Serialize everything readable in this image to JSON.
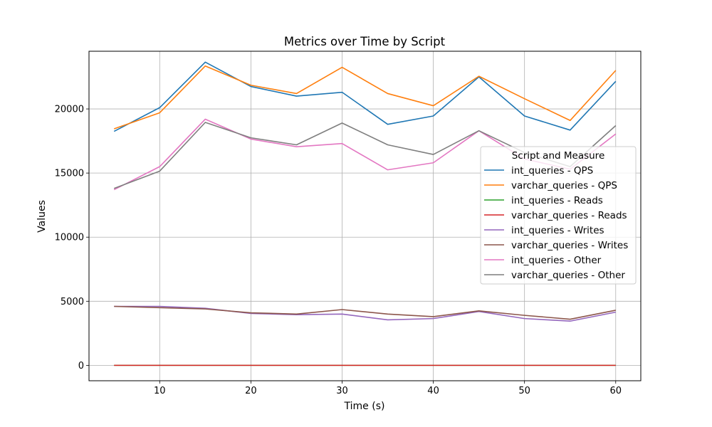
{
  "chart_data": {
    "type": "line",
    "title": "Metrics over Time by Script",
    "xlabel": "Time (s)",
    "ylabel": "Values",
    "x": [
      5,
      10,
      15,
      20,
      25,
      30,
      35,
      40,
      45,
      50,
      55,
      60
    ],
    "xlim": [
      2.25,
      62.75
    ],
    "ylim": [
      -1200,
      24500
    ],
    "xticks": [
      10,
      20,
      30,
      40,
      50,
      60
    ],
    "yticks": [
      0,
      5000,
      10000,
      15000,
      20000
    ],
    "grid": true,
    "legend": {
      "title": "Script and Measure",
      "placement": "right"
    },
    "series": [
      {
        "name": "int_queries - QPS",
        "color": "#1f77b4",
        "values": [
          18250,
          20100,
          23650,
          21750,
          21000,
          21300,
          18800,
          19450,
          22500,
          19450,
          18350,
          22150
        ]
      },
      {
        "name": "varchar_queries - QPS",
        "color": "#ff7f0e",
        "values": [
          18450,
          19700,
          23350,
          21850,
          21200,
          23250,
          21200,
          20250,
          22550,
          20800,
          19100,
          23000
        ]
      },
      {
        "name": "int_queries - Reads",
        "color": "#2ca02c",
        "values": [
          0,
          0,
          0,
          0,
          0,
          0,
          0,
          0,
          0,
          0,
          0,
          0
        ]
      },
      {
        "name": "varchar_queries - Reads",
        "color": "#d62728",
        "values": [
          0,
          0,
          0,
          0,
          0,
          0,
          0,
          0,
          0,
          0,
          0,
          0
        ]
      },
      {
        "name": "int_queries - Writes",
        "color": "#9467bd",
        "values": [
          4600,
          4600,
          4450,
          4050,
          3950,
          4000,
          3550,
          3650,
          4200,
          3650,
          3450,
          4150
        ]
      },
      {
        "name": "varchar_queries - Writes",
        "color": "#8c564b",
        "values": [
          4600,
          4500,
          4400,
          4100,
          4000,
          4350,
          4000,
          3800,
          4250,
          3900,
          3600,
          4300
        ]
      },
      {
        "name": "int_queries - Other",
        "color": "#e377c2",
        "values": [
          13700,
          15500,
          19200,
          17650,
          17050,
          17300,
          15250,
          15800,
          18300,
          16100,
          15300,
          18050
        ]
      },
      {
        "name": "varchar_queries - Other",
        "color": "#7f7f7f",
        "values": [
          13800,
          15150,
          18950,
          17750,
          17200,
          18900,
          17200,
          16450,
          18300,
          16600,
          15500,
          18700
        ]
      }
    ]
  }
}
